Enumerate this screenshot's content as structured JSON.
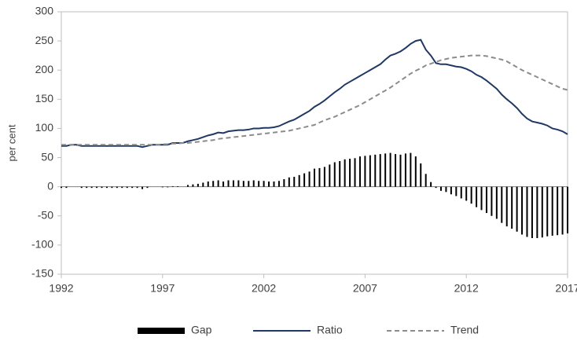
{
  "chart_data": {
    "type": "line",
    "y_label": "per cent",
    "x": [
      1992,
      1992.25,
      1992.5,
      1992.75,
      1993,
      1993.25,
      1993.5,
      1993.75,
      1994,
      1994.25,
      1994.5,
      1994.75,
      1995,
      1995.25,
      1995.5,
      1995.75,
      1996,
      1996.25,
      1996.5,
      1996.75,
      1997,
      1997.25,
      1997.5,
      1997.75,
      1998,
      1998.25,
      1998.5,
      1998.75,
      1999,
      1999.25,
      1999.5,
      1999.75,
      2000,
      2000.25,
      2000.5,
      2000.75,
      2001,
      2001.25,
      2001.5,
      2001.75,
      2002,
      2002.25,
      2002.5,
      2002.75,
      2003,
      2003.25,
      2003.5,
      2003.75,
      2004,
      2004.25,
      2004.5,
      2004.75,
      2005,
      2005.25,
      2005.5,
      2005.75,
      2006,
      2006.25,
      2006.5,
      2006.75,
      2007,
      2007.25,
      2007.5,
      2007.75,
      2008,
      2008.25,
      2008.5,
      2008.75,
      2009,
      2009.25,
      2009.5,
      2009.75,
      2010,
      2010.25,
      2010.5,
      2010.75,
      2011,
      2011.25,
      2011.5,
      2011.75,
      2012,
      2012.25,
      2012.5,
      2012.75,
      2013,
      2013.25,
      2013.5,
      2013.75,
      2014,
      2014.25,
      2014.5,
      2014.75,
      2015,
      2015.25,
      2015.5,
      2015.75,
      2016,
      2016.25,
      2016.5,
      2016.75,
      2017
    ],
    "series": [
      {
        "name": "Gap",
        "kind": "bar",
        "color": "#000000",
        "values": [
          -2,
          -2,
          0,
          0,
          -2,
          -2,
          -2,
          -2,
          -2,
          -2,
          -2,
          -2,
          -2,
          -2,
          -2,
          -2,
          -4,
          -2,
          0,
          0,
          -1,
          -1,
          1,
          1,
          0,
          3,
          4,
          5,
          7,
          9,
          10,
          11,
          9,
          11,
          11,
          11,
          10,
          10,
          11,
          10,
          10,
          9,
          9,
          10,
          13,
          16,
          17,
          20,
          23,
          26,
          31,
          32,
          34,
          38,
          42,
          44,
          47,
          48,
          49,
          52,
          53,
          54,
          55,
          56,
          57,
          58,
          56,
          55,
          57,
          58,
          52,
          40,
          22,
          8,
          -2,
          -7,
          -9,
          -13,
          -16,
          -20,
          -24,
          -29,
          -35,
          -40,
          -45,
          -50,
          -55,
          -62,
          -68,
          -72,
          -77,
          -82,
          -86,
          -88,
          -88,
          -87,
          -85,
          -84,
          -83,
          -82,
          -80
        ]
      },
      {
        "name": "Ratio",
        "kind": "line",
        "color": "#1f3864",
        "values": [
          70,
          70,
          72,
          72,
          70,
          70,
          70,
          70,
          70,
          70,
          70,
          70,
          70,
          70,
          70,
          70,
          68,
          70,
          72,
          72,
          72,
          72,
          75,
          75,
          75,
          78,
          80,
          82,
          85,
          88,
          90,
          93,
          92,
          95,
          96,
          97,
          97,
          98,
          100,
          100,
          101,
          101,
          102,
          104,
          108,
          112,
          115,
          120,
          125,
          130,
          137,
          142,
          148,
          155,
          162,
          168,
          175,
          180,
          185,
          190,
          195,
          200,
          205,
          210,
          218,
          225,
          228,
          232,
          238,
          245,
          250,
          252,
          235,
          225,
          212,
          210,
          210,
          208,
          206,
          205,
          202,
          198,
          192,
          188,
          182,
          175,
          168,
          158,
          150,
          143,
          135,
          125,
          117,
          112,
          110,
          108,
          105,
          100,
          98,
          95,
          90
        ]
      },
      {
        "name": "Trend",
        "kind": "dashed",
        "color": "#8c8c8c",
        "values": [
          72,
          72,
          72,
          72,
          72,
          72,
          72,
          72,
          72,
          72,
          72,
          72,
          72,
          72,
          72,
          72,
          72,
          72,
          72,
          72,
          73,
          73,
          74,
          74,
          75,
          75,
          76,
          77,
          78,
          79,
          80,
          82,
          83,
          84,
          85,
          86,
          87,
          88,
          89,
          90,
          91,
          92,
          93,
          94,
          95,
          96,
          98,
          100,
          102,
          104,
          106,
          110,
          114,
          117,
          120,
          124,
          128,
          132,
          136,
          140,
          145,
          150,
          155,
          160,
          165,
          170,
          176,
          182,
          188,
          194,
          199,
          203,
          208,
          211,
          214,
          217,
          219,
          221,
          222,
          223,
          224,
          225,
          225,
          225,
          224,
          222,
          220,
          218,
          215,
          210,
          205,
          200,
          196,
          192,
          188,
          184,
          180,
          176,
          172,
          168,
          166
        ]
      }
    ],
    "xlim": [
      1992,
      2017
    ],
    "xticks": [
      1992,
      1997,
      2002,
      2007,
      2012,
      2017
    ],
    "ylim": [
      -150,
      300
    ],
    "yticks": [
      -150,
      -100,
      -50,
      0,
      50,
      100,
      150,
      200,
      250,
      300
    ],
    "legend": "bottom"
  }
}
